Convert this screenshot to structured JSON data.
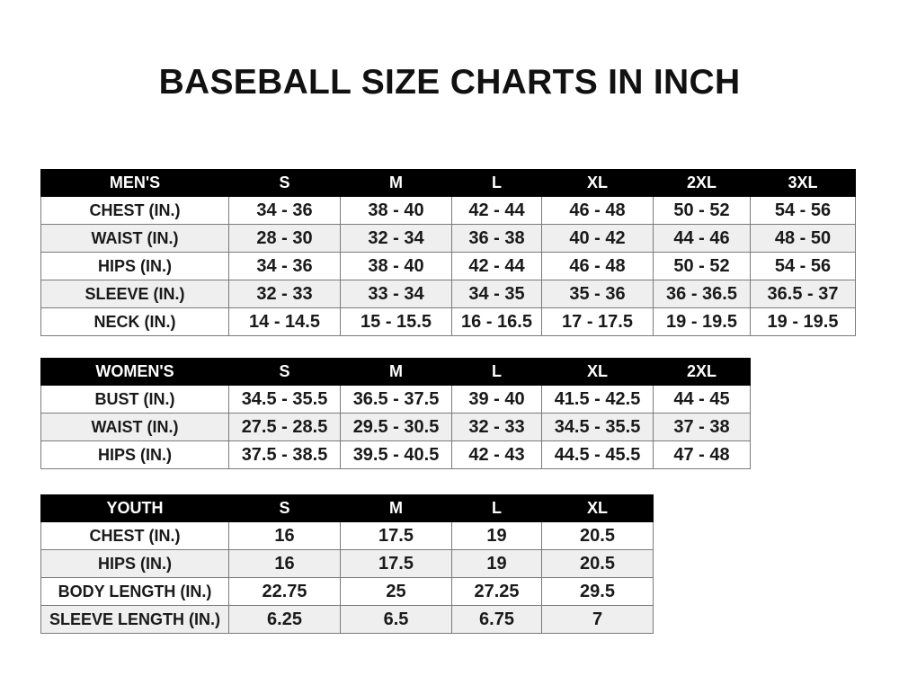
{
  "title": "BASEBALL SIZE CHARTS IN INCH",
  "tables": [
    {
      "name": "mens",
      "header": [
        "MEN'S",
        "S",
        "M",
        "L",
        "XL",
        "2XL",
        "3XL"
      ],
      "rows": [
        [
          "CHEST (IN.)",
          "34 - 36",
          "38 - 40",
          "42 - 44",
          "46 - 48",
          "50 - 52",
          "54 - 56"
        ],
        [
          "WAIST (IN.)",
          "28 - 30",
          "32 - 34",
          "36 - 38",
          "40 - 42",
          "44 - 46",
          "48 - 50"
        ],
        [
          "HIPS (IN.)",
          "34 - 36",
          "38 - 40",
          "42 - 44",
          "46 - 48",
          "50 - 52",
          "54 - 56"
        ],
        [
          "SLEEVE (IN.)",
          "32 - 33",
          "33 - 34",
          "34 - 35",
          "35 - 36",
          "36 - 36.5",
          "36.5 - 37"
        ],
        [
          "NECK (IN.)",
          "14 - 14.5",
          "15 - 15.5",
          "16 - 16.5",
          "17 - 17.5",
          "19 - 19.5",
          "19 - 19.5"
        ]
      ]
    },
    {
      "name": "womens",
      "header": [
        "WOMEN'S",
        "S",
        "M",
        "L",
        "XL",
        "2XL"
      ],
      "rows": [
        [
          "BUST (IN.)",
          "34.5 - 35.5",
          "36.5 - 37.5",
          "39 - 40",
          "41.5 - 42.5",
          "44 - 45"
        ],
        [
          "WAIST (IN.)",
          "27.5 - 28.5",
          "29.5 - 30.5",
          "32 - 33",
          "34.5 - 35.5",
          "37 - 38"
        ],
        [
          "HIPS (IN.)",
          "37.5 - 38.5",
          "39.5 - 40.5",
          "42 - 43",
          "44.5 - 45.5",
          "47 - 48"
        ]
      ]
    },
    {
      "name": "youth",
      "header": [
        "YOUTH",
        "S",
        "M",
        "L",
        "XL"
      ],
      "rows": [
        [
          "CHEST (IN.)",
          "16",
          "17.5",
          "19",
          "20.5"
        ],
        [
          "HIPS (IN.)",
          "16",
          "17.5",
          "19",
          "20.5"
        ],
        [
          "BODY LENGTH (IN.)",
          "22.75",
          "25",
          "27.25",
          "29.5"
        ],
        [
          "SLEEVE LENGTH (IN.)",
          "6.25",
          "6.5",
          "6.75",
          "7"
        ]
      ]
    }
  ]
}
